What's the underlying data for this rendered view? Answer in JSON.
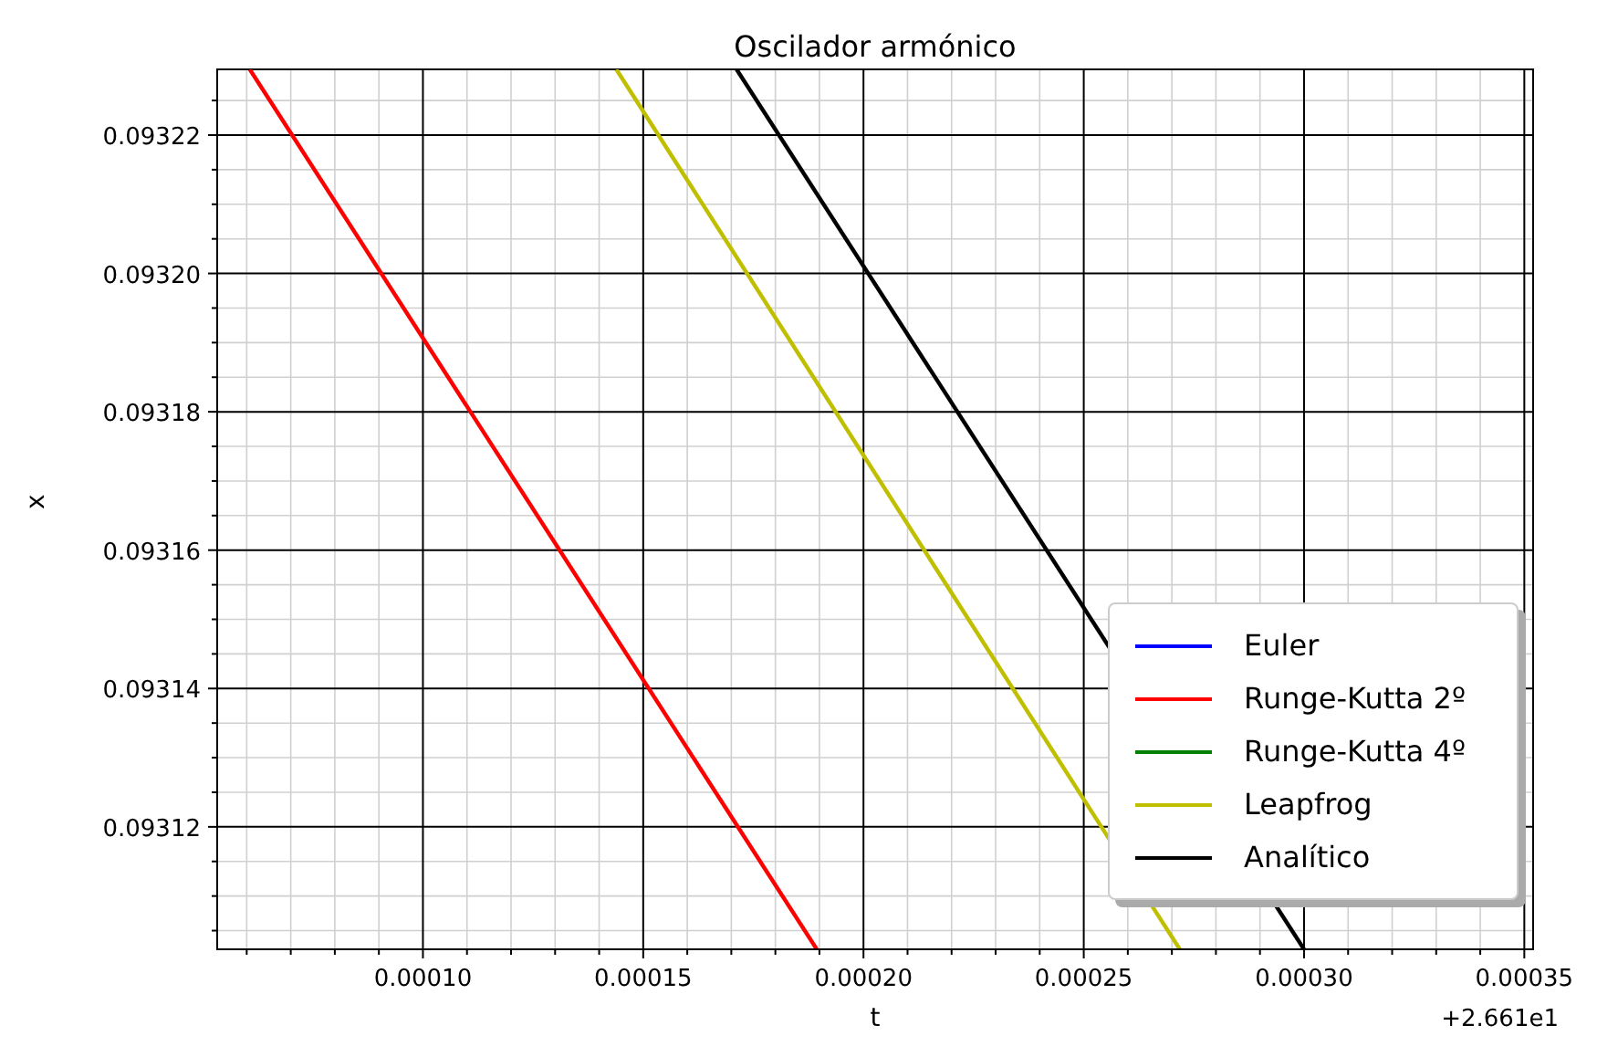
{
  "chart_data": {
    "type": "line",
    "title": "Oscilador armónico",
    "xlabel": "t",
    "ylabel": "x",
    "annotations": [
      "+2.661e1"
    ],
    "xlim": [
      5.33e-05,
      0.000352
    ],
    "xticks": [
      {
        "value": 6e-05,
        "label": null
      },
      {
        "value": 7e-05,
        "label": null
      },
      {
        "value": 8e-05,
        "label": null
      },
      {
        "value": 9e-05,
        "label": null
      },
      {
        "value": 0.0001,
        "label": "0.00010"
      },
      {
        "value": 0.00011,
        "label": null
      },
      {
        "value": 0.00012,
        "label": null
      },
      {
        "value": 0.00013,
        "label": null
      },
      {
        "value": 0.00014,
        "label": null
      },
      {
        "value": 0.00015,
        "label": "0.00015"
      },
      {
        "value": 0.00016,
        "label": null
      },
      {
        "value": 0.00017,
        "label": null
      },
      {
        "value": 0.00018,
        "label": null
      },
      {
        "value": 0.00019,
        "label": null
      },
      {
        "value": 0.0002,
        "label": "0.00020"
      },
      {
        "value": 0.00021,
        "label": null
      },
      {
        "value": 0.00022,
        "label": null
      },
      {
        "value": 0.00023,
        "label": null
      },
      {
        "value": 0.00024,
        "label": null
      },
      {
        "value": 0.00025,
        "label": "0.00025"
      },
      {
        "value": 0.00026,
        "label": null
      },
      {
        "value": 0.00027,
        "label": null
      },
      {
        "value": 0.00028,
        "label": null
      },
      {
        "value": 0.00029,
        "label": null
      },
      {
        "value": 0.0003,
        "label": "0.00030"
      },
      {
        "value": 0.00031,
        "label": null
      },
      {
        "value": 0.00032,
        "label": null
      },
      {
        "value": 0.00033,
        "label": null
      },
      {
        "value": 0.00034,
        "label": null
      },
      {
        "value": 0.00035,
        "label": "0.00035"
      }
    ],
    "ylim": [
      0.0931023,
      0.0932295
    ],
    "yticks": [
      {
        "value": 0.093105,
        "label": null
      },
      {
        "value": 0.09311,
        "label": null
      },
      {
        "value": 0.093115,
        "label": null
      },
      {
        "value": 0.09312,
        "label": "0.09312"
      },
      {
        "value": 0.093125,
        "label": null
      },
      {
        "value": 0.09313,
        "label": null
      },
      {
        "value": 0.093135,
        "label": null
      },
      {
        "value": 0.09314,
        "label": "0.09314"
      },
      {
        "value": 0.093145,
        "label": null
      },
      {
        "value": 0.09315,
        "label": null
      },
      {
        "value": 0.093155,
        "label": null
      },
      {
        "value": 0.09316,
        "label": "0.09316"
      },
      {
        "value": 0.093165,
        "label": null
      },
      {
        "value": 0.09317,
        "label": null
      },
      {
        "value": 0.093175,
        "label": null
      },
      {
        "value": 0.09318,
        "label": "0.09318"
      },
      {
        "value": 0.093185,
        "label": null
      },
      {
        "value": 0.09319,
        "label": null
      },
      {
        "value": 0.093195,
        "label": null
      },
      {
        "value": 0.0932,
        "label": "0.09320"
      },
      {
        "value": 0.093205,
        "label": null
      },
      {
        "value": 0.09321,
        "label": null
      },
      {
        "value": 0.093215,
        "label": null
      },
      {
        "value": 0.09322,
        "label": "0.09322"
      },
      {
        "value": 0.093225,
        "label": null
      }
    ],
    "grid": true,
    "legend": "bottom right",
    "line_style": "solid",
    "marker": "none",
    "series": [
      {
        "name": "Euler",
        "color": "#0000ff"
      },
      {
        "name": "Runge-Kutta 2º",
        "color": "#ff0000",
        "x": [
          6.07e-05,
          0.0001894
        ],
        "values": [
          0.0932295,
          0.0931023
        ]
      },
      {
        "name": "Runge-Kutta 4º",
        "color": "#008000"
      },
      {
        "name": "Leapfrog",
        "color": "#bfbf00",
        "x": [
          0.0001439,
          0.0002718
        ],
        "values": [
          0.0932295,
          0.0931023
        ]
      },
      {
        "name": "Analítico",
        "color": "#000000",
        "x": [
          0.0001712,
          0.0003
        ],
        "values": [
          0.0932295,
          0.0931023
        ]
      }
    ]
  }
}
